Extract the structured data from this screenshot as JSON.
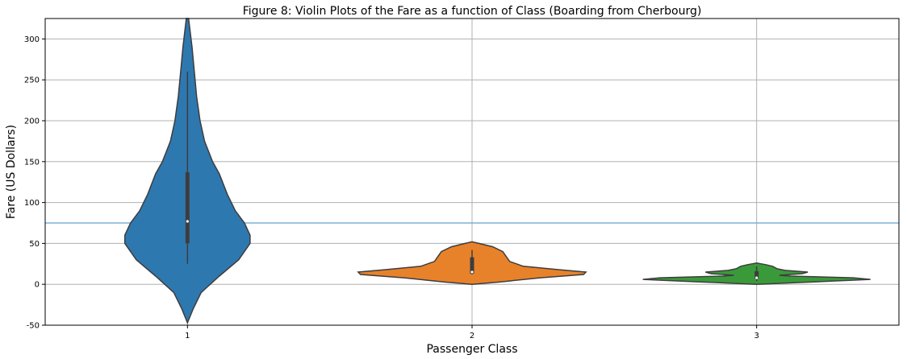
{
  "chart_data": {
    "type": "violin",
    "title": "Figure 8:  Violin Plots of the Fare as a function of Class (Boarding from Cherbourg)",
    "xlabel": "Passenger Class",
    "ylabel": "Fare (US Dollars)",
    "categories": [
      "1",
      "2",
      "3"
    ],
    "ylim": [
      -50,
      325
    ],
    "yticks": [
      -50,
      0,
      50,
      100,
      150,
      200,
      250,
      300
    ],
    "grid": true,
    "reference_line": {
      "y": 75,
      "color": "#7fb0d6"
    },
    "violins": [
      {
        "category": "1",
        "color": "#2e78b0",
        "q1": 50,
        "median": 77,
        "q3": 137,
        "whisker_low": 25,
        "whisker_high": 260,
        "range": [
          -47,
          325
        ],
        "density": [
          [
            -47,
            0.0
          ],
          [
            -30,
            0.05
          ],
          [
            -10,
            0.12
          ],
          [
            10,
            0.28
          ],
          [
            30,
            0.45
          ],
          [
            50,
            0.55
          ],
          [
            60,
            0.55
          ],
          [
            75,
            0.5
          ],
          [
            90,
            0.42
          ],
          [
            110,
            0.35
          ],
          [
            135,
            0.28
          ],
          [
            150,
            0.22
          ],
          [
            175,
            0.15
          ],
          [
            200,
            0.11
          ],
          [
            230,
            0.08
          ],
          [
            260,
            0.06
          ],
          [
            290,
            0.04
          ],
          [
            325,
            0.01
          ]
        ]
      },
      {
        "category": "2",
        "color": "#e8822a",
        "q1": 13,
        "median": 15,
        "q3": 33,
        "whisker_low": 12,
        "whisker_high": 42,
        "range": [
          0,
          52
        ],
        "density": [
          [
            0,
            0.0
          ],
          [
            3,
            0.25
          ],
          [
            8,
            0.6
          ],
          [
            12,
            0.98
          ],
          [
            15,
            1.0
          ],
          [
            18,
            0.75
          ],
          [
            22,
            0.45
          ],
          [
            28,
            0.33
          ],
          [
            34,
            0.3
          ],
          [
            40,
            0.27
          ],
          [
            46,
            0.18
          ],
          [
            50,
            0.06
          ],
          [
            52,
            0.0
          ]
        ]
      },
      {
        "category": "3",
        "color": "#3a9a3a",
        "q1": 7,
        "median": 8,
        "q3": 16,
        "whisker_low": 4,
        "whisker_high": 22,
        "range": [
          0,
          26
        ],
        "density": [
          [
            0,
            0.0
          ],
          [
            3,
            0.5
          ],
          [
            6,
            1.0
          ],
          [
            8,
            0.85
          ],
          [
            10,
            0.3
          ],
          [
            11,
            0.2
          ],
          [
            13,
            0.4
          ],
          [
            15,
            0.45
          ],
          [
            17,
            0.25
          ],
          [
            19,
            0.18
          ],
          [
            22,
            0.14
          ],
          [
            24,
            0.08
          ],
          [
            26,
            0.0
          ]
        ]
      }
    ]
  }
}
